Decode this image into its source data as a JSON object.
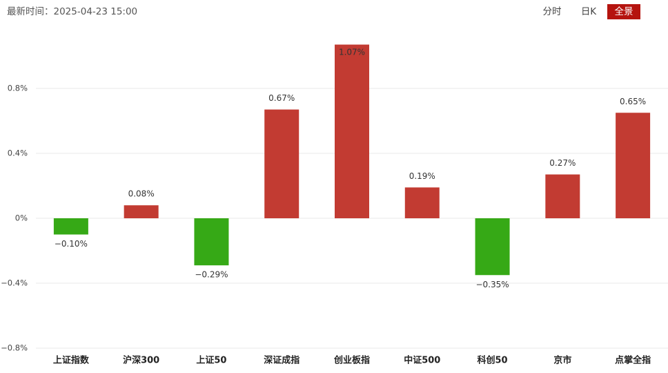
{
  "header": {
    "time_text": "最新时间：2025-04-23 15:00",
    "tabs": [
      "分时",
      "日K",
      "全景"
    ],
    "active_tab": 2
  },
  "chart_data": {
    "type": "bar",
    "categories": [
      "上证指数",
      "沪深300",
      "上证50",
      "深证成指",
      "创业板指",
      "中证500",
      "科创50",
      "京市",
      "点掌全指"
    ],
    "values": [
      -0.1,
      0.08,
      -0.29,
      0.67,
      1.07,
      0.19,
      -0.35,
      0.27,
      0.65
    ],
    "value_labels": [
      "−0.10%",
      "0.08%",
      "−0.29%",
      "0.67%",
      "1.07%",
      "0.19%",
      "−0.35%",
      "0.27%",
      "0.65%"
    ],
    "up_color": "#c23b32",
    "down_color": "#36a916",
    "ylim": [
      -0.8,
      1.2
    ],
    "yticks": [
      {
        "value": 0.8,
        "label": "0.8%"
      },
      {
        "value": 0.4,
        "label": "0.4%"
      },
      {
        "value": 0,
        "label": "0%"
      },
      {
        "value": -0.4,
        "label": "−0.4%"
      },
      {
        "value": -0.8,
        "label": "−0.8%"
      }
    ],
    "grid": true
  }
}
